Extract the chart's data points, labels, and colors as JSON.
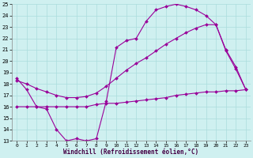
{
  "xlabel": "Windchill (Refroidissement éolien,°C)",
  "bg_color": "#cff0f0",
  "line_color": "#990099",
  "grid_color": "#aadddd",
  "xlim": [
    -0.5,
    23.5
  ],
  "ylim": [
    13,
    25
  ],
  "xticks": [
    0,
    1,
    2,
    3,
    4,
    5,
    6,
    7,
    8,
    9,
    10,
    11,
    12,
    13,
    14,
    15,
    16,
    17,
    18,
    19,
    20,
    21,
    22,
    23
  ],
  "yticks": [
    13,
    14,
    15,
    16,
    17,
    18,
    19,
    20,
    21,
    22,
    23,
    24,
    25
  ],
  "line1_y": [
    18.5,
    17.5,
    16.0,
    15.8,
    14.0,
    13.0,
    13.2,
    13.0,
    13.2,
    16.5,
    21.2,
    21.8,
    22.0,
    23.5,
    24.5,
    24.8,
    25.0,
    24.8,
    24.5,
    24.0,
    23.2,
    21.0,
    19.5,
    17.5
  ],
  "line2_y": [
    18.3,
    18.0,
    17.6,
    17.3,
    17.0,
    16.8,
    16.8,
    16.9,
    17.2,
    17.8,
    18.5,
    19.2,
    19.8,
    20.3,
    20.9,
    21.5,
    22.0,
    22.5,
    22.9,
    23.2,
    23.2,
    20.9,
    19.3,
    17.5
  ],
  "line3_y": [
    16.0,
    16.0,
    16.0,
    16.0,
    16.0,
    16.0,
    16.0,
    16.0,
    16.2,
    16.3,
    16.3,
    16.4,
    16.5,
    16.6,
    16.7,
    16.8,
    17.0,
    17.1,
    17.2,
    17.3,
    17.3,
    17.4,
    17.4,
    17.5
  ],
  "tick_fontsize": 5.5,
  "xlabel_fontsize": 5.5,
  "marker_size": 2.0,
  "line_width": 0.8
}
